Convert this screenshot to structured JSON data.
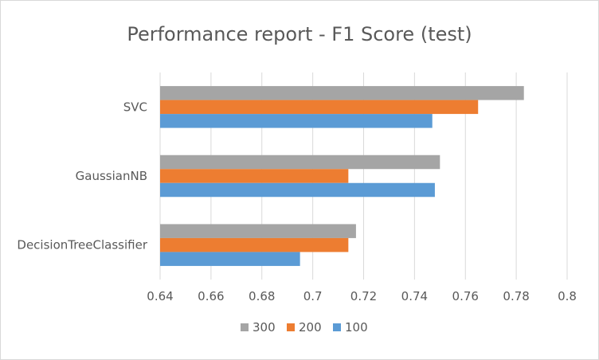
{
  "chart_data": {
    "type": "bar",
    "orientation": "horizontal",
    "title": "Performance report - F1 Score (test)",
    "xlabel": "",
    "ylabel": "",
    "categories": [
      "SVC",
      "GaussianNB",
      "DecisionTreeClassifier"
    ],
    "series": [
      {
        "name": "300",
        "color": "#a5a5a5",
        "values": [
          0.783,
          0.75,
          0.717
        ]
      },
      {
        "name": "200",
        "color": "#ed7d31",
        "values": [
          0.765,
          0.714,
          0.714
        ]
      },
      {
        "name": "100",
        "color": "#5b9bd5",
        "values": [
          0.747,
          0.748,
          0.695
        ]
      }
    ],
    "xlim": [
      0.64,
      0.8
    ],
    "xticks": [
      "0.64",
      "0.66",
      "0.68",
      "0.7",
      "0.72",
      "0.74",
      "0.76",
      "0.78",
      "0.8"
    ],
    "xtick_values": [
      0.64,
      0.66,
      0.68,
      0.7,
      0.72,
      0.74,
      0.76,
      0.78,
      0.8
    ],
    "grid": true,
    "legend_position": "bottom"
  }
}
